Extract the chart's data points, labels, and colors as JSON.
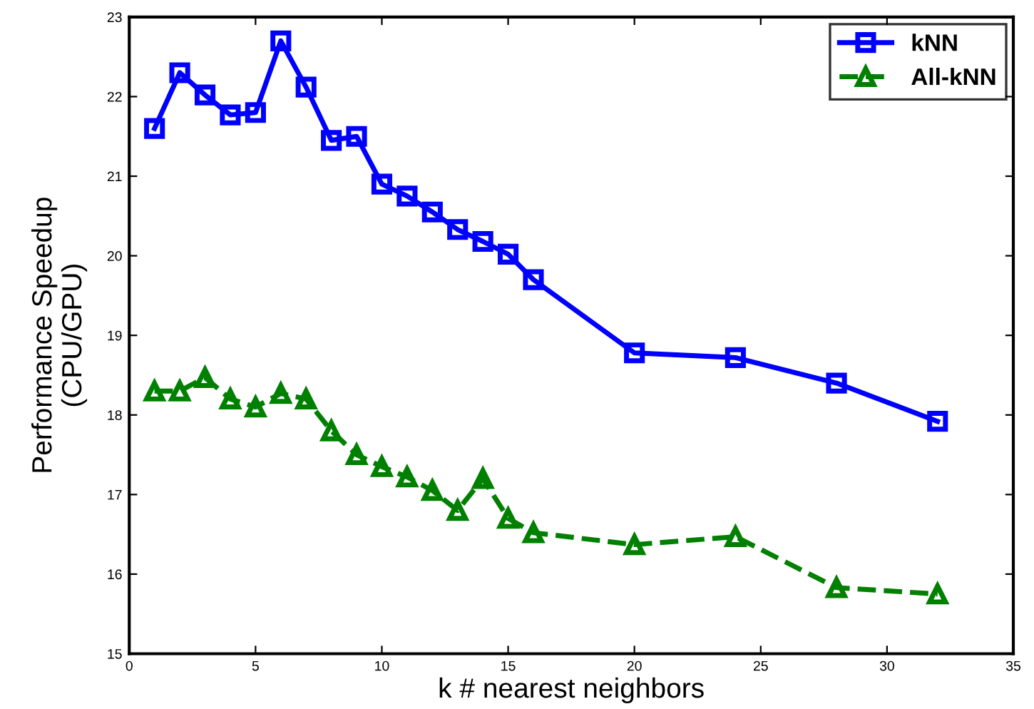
{
  "chart_data": {
    "type": "line",
    "xlabel": "k # nearest neighbors",
    "ylabel": "Performance Speedup\n(CPU/GPU)",
    "xlim": [
      0,
      35
    ],
    "xticks": [
      0,
      5,
      10,
      15,
      20,
      25,
      30,
      35
    ],
    "ylim": [
      15,
      23
    ],
    "yticks": [
      15,
      16,
      17,
      18,
      19,
      20,
      21,
      22,
      23
    ],
    "grid": false,
    "legend": "top right",
    "series": [
      {
        "name": "kNN",
        "color": "#0000ff",
        "marker": "square",
        "line_style": "solid",
        "x": [
          1,
          2,
          3,
          4,
          5,
          6,
          7,
          8,
          9,
          10,
          11,
          12,
          13,
          14,
          15,
          16,
          20,
          24,
          28,
          32
        ],
        "values": [
          21.6,
          22.3,
          22.02,
          21.77,
          21.8,
          22.7,
          22.12,
          21.45,
          21.5,
          20.9,
          20.75,
          20.55,
          20.33,
          20.18,
          20.02,
          19.7,
          18.78,
          18.72,
          18.4,
          17.92
        ]
      },
      {
        "name": "All-kNN",
        "color": "#008000",
        "marker": "triangle",
        "line_style": "dashed",
        "x": [
          1,
          2,
          3,
          4,
          5,
          6,
          7,
          8,
          9,
          10,
          11,
          12,
          13,
          14,
          15,
          16,
          20,
          24,
          28,
          32
        ],
        "values": [
          18.3,
          18.3,
          18.47,
          18.2,
          18.1,
          18.27,
          18.2,
          17.8,
          17.5,
          17.35,
          17.22,
          17.05,
          16.8,
          17.2,
          16.7,
          16.52,
          16.37,
          16.47,
          15.83,
          15.75
        ]
      }
    ]
  }
}
